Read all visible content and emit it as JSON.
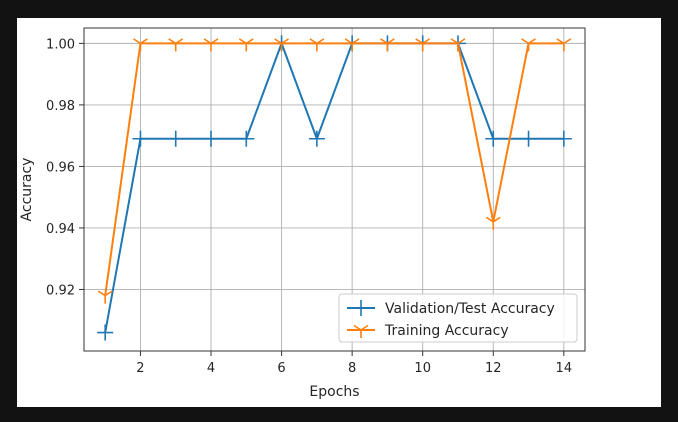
{
  "chart_data": {
    "type": "line",
    "title": "",
    "xlabel": "Epochs",
    "ylabel": "Accuracy",
    "xlim": [
      0.4,
      14.6
    ],
    "ylim": [
      0.9,
      1.005
    ],
    "xticks": [
      2,
      4,
      6,
      8,
      10,
      12,
      14
    ],
    "yticks": [
      0.92,
      0.94,
      0.96,
      0.98,
      1.0
    ],
    "xtick_labels": [
      "2",
      "4",
      "6",
      "8",
      "10",
      "12",
      "14"
    ],
    "ytick_labels": [
      "0.92",
      "0.94",
      "0.96",
      "0.98",
      "1.00"
    ],
    "grid": true,
    "legend_position": "lower-right",
    "x": [
      1,
      2,
      3,
      4,
      5,
      6,
      7,
      8,
      9,
      10,
      11,
      12,
      13,
      14
    ],
    "series": [
      {
        "name": "Validation/Test Accuracy",
        "color": "#1f77b4",
        "marker": "plus",
        "values": [
          0.906,
          0.969,
          0.969,
          0.969,
          0.969,
          1.0,
          0.969,
          1.0,
          1.0,
          1.0,
          1.0,
          0.969,
          0.969,
          0.969
        ]
      },
      {
        "name": "Training Accuracy",
        "color": "#ff7f0e",
        "marker": "tri_down",
        "values": [
          0.918,
          1.0,
          1.0,
          1.0,
          1.0,
          1.0,
          1.0,
          1.0,
          1.0,
          1.0,
          1.0,
          0.942,
          1.0,
          1.0
        ]
      }
    ]
  }
}
